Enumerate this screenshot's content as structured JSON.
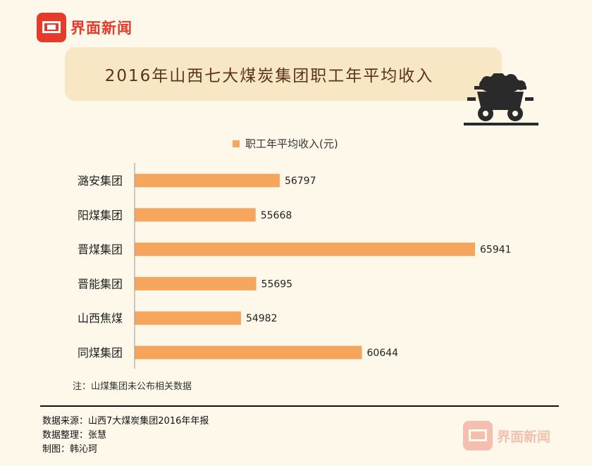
{
  "brand": {
    "name": "界面新闻"
  },
  "watermark": {
    "name": "界面新闻"
  },
  "title": "2016年山西七大煤炭集团职工年平均收入",
  "chart_data": {
    "type": "bar",
    "orientation": "horizontal",
    "categories": [
      "潞安集团",
      "阳煤集团",
      "晋煤集团",
      "晋能集团",
      "山西焦煤",
      "同煤集团"
    ],
    "series": [
      {
        "name": "职工年平均收入(元)",
        "values": [
          56797,
          55668,
          65941,
          55695,
          54982,
          60644
        ]
      }
    ],
    "data_labels": [
      "56797",
      "55668",
      "65941",
      "55695",
      "54982",
      "60644"
    ],
    "bar_color": "#f5a55c",
    "legend_position": "top",
    "grid": false
  },
  "note": "注：山煤集团未公布相关数据",
  "footer": {
    "source": "数据来源：山西7大煤炭集团2016年年报",
    "compiler": "数据整理：张慧",
    "designer": "制图：韩沁珂"
  }
}
